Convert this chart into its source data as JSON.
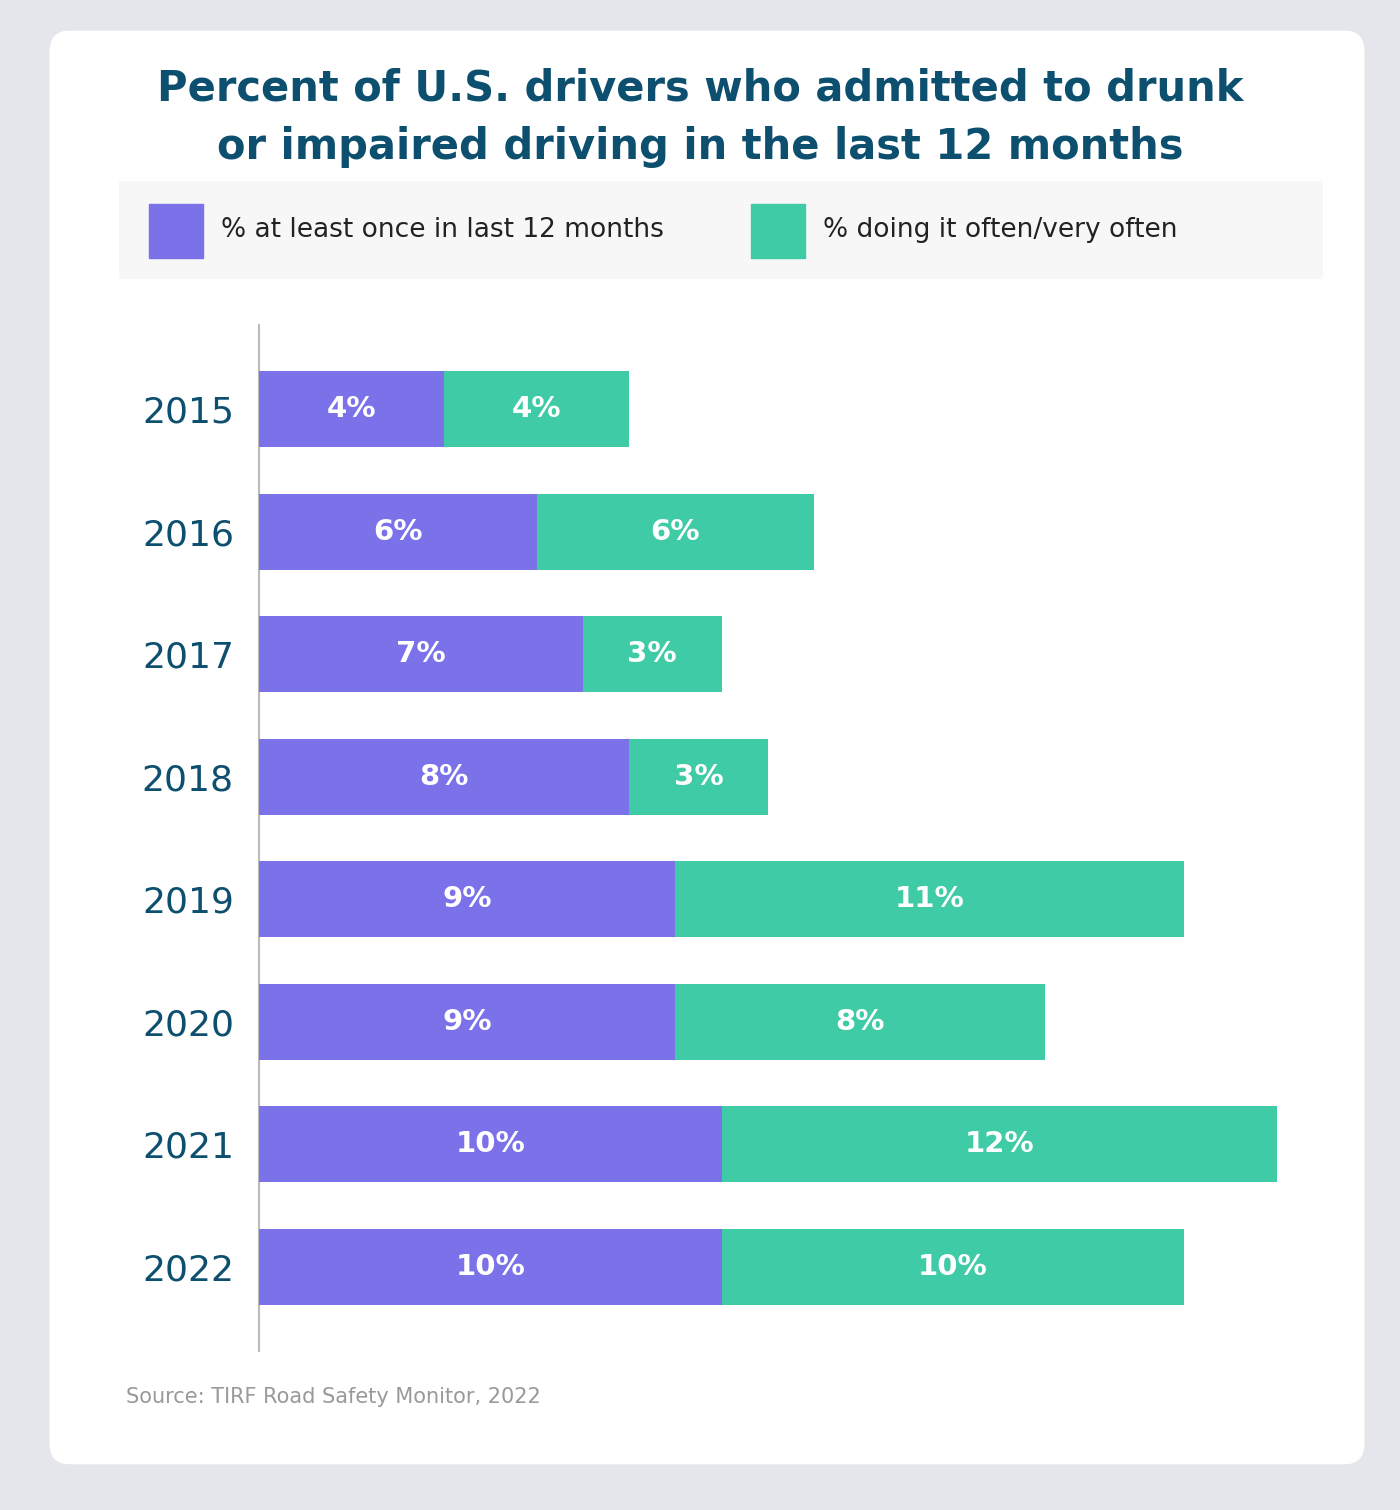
{
  "title_line1": "Percent of U.S. drivers who admitted to drunk",
  "title_line2": "or impaired driving in the last 12 months",
  "title_color": "#0d4f6e",
  "title_fontsize": 30,
  "years": [
    "2015",
    "2016",
    "2017",
    "2018",
    "2019",
    "2020",
    "2021",
    "2022"
  ],
  "values_purple": [
    4,
    6,
    7,
    8,
    9,
    9,
    10,
    10
  ],
  "values_green": [
    4,
    6,
    3,
    3,
    11,
    8,
    12,
    10
  ],
  "purple_color": "#7b72e9",
  "green_color": "#3ecba5",
  "bar_height": 0.62,
  "legend_label_purple": "% at least once in last 12 months",
  "legend_label_green": "% doing it often/very often",
  "source_text": "Source: TIRF Road Safety Monitor, 2022",
  "source_color": "#999999",
  "source_fontsize": 15,
  "label_fontsize": 21,
  "label_color": "#ffffff",
  "year_fontsize": 26,
  "year_color": "#0d4f6e",
  "background_outer": "#e5e5ec",
  "background_inner": "#ffffff",
  "legend_fontsize": 19,
  "xlim": [
    0,
    23
  ]
}
